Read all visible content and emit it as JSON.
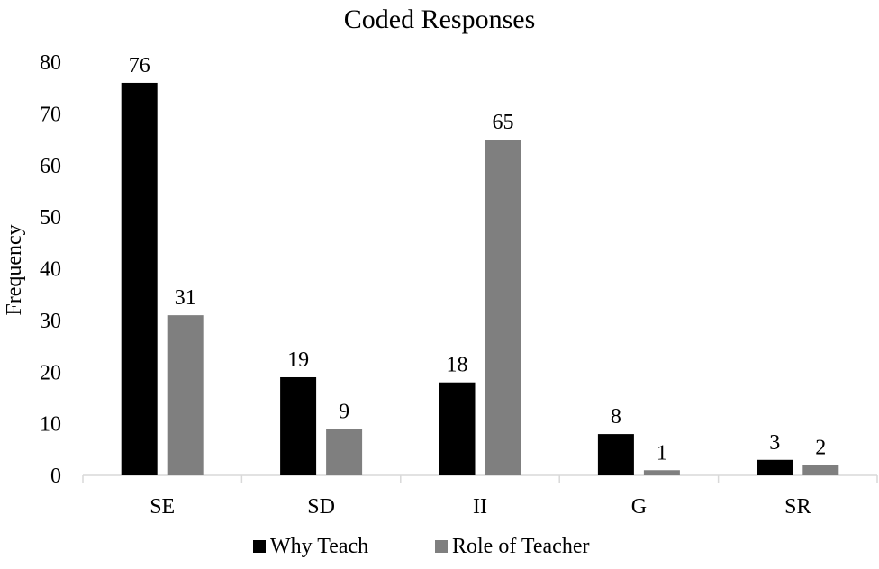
{
  "chart_data": {
    "type": "bar",
    "title": "Coded Responses",
    "xlabel": "",
    "ylabel": "Frequency",
    "categories": [
      "SE",
      "SD",
      "II",
      "G",
      "SR"
    ],
    "series": [
      {
        "name": "Why Teach",
        "color": "#000000",
        "values": [
          76,
          19,
          18,
          8,
          3
        ]
      },
      {
        "name": "Role of Teacher",
        "color": "#7f7f7f",
        "values": [
          31,
          9,
          65,
          1,
          2
        ]
      }
    ],
    "ylim": [
      0,
      80
    ],
    "yticks": [
      "0",
      "10",
      "20",
      "30",
      "40",
      "50",
      "60",
      "70",
      "80"
    ],
    "grid": false,
    "legend": "bottom",
    "axis_color": "#d9d9d9"
  }
}
